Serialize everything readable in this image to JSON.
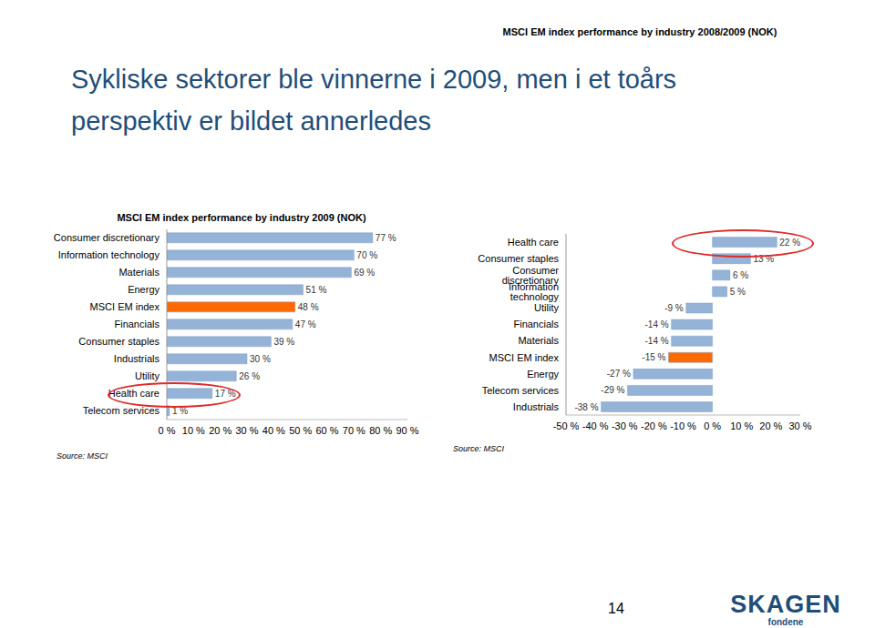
{
  "title": [
    "Sykliske sektorer ble vinnerne i 2009, men i et toårs",
    "perspektiv er bildet annerledes"
  ],
  "chart_data": [
    {
      "type": "bar",
      "orientation": "horizontal",
      "title": "MSCI EM index performance by industry 2009 (NOK)",
      "categories": [
        "Consumer discretionary",
        "Information technology",
        "Materials",
        "Energy",
        "MSCI EM index",
        "Financials",
        "Consumer staples",
        "Industrials",
        "Utility",
        "Health care",
        "Telecom services"
      ],
      "values": [
        77,
        70,
        69,
        51,
        48,
        47,
        39,
        30,
        26,
        17,
        1
      ],
      "value_labels": [
        "77 %",
        "70 %",
        "69 %",
        "51 %",
        "48 %",
        "47 %",
        "39 %",
        "30 %",
        "26 %",
        "17 %",
        "1 %"
      ],
      "data_labels": true,
      "colors": [
        "#95B3D7",
        "#95B3D7",
        "#95B3D7",
        "#95B3D7",
        "#FF6A00",
        "#95B3D7",
        "#95B3D7",
        "#95B3D7",
        "#95B3D7",
        "#95B3D7",
        "#95B3D7"
      ],
      "xlim": [
        0,
        90
      ],
      "xticks": [
        {
          "value": 0,
          "label": "0 %"
        },
        {
          "value": 10,
          "label": "10 %"
        },
        {
          "value": 20,
          "label": "20 %"
        },
        {
          "value": 30,
          "label": "30 %"
        },
        {
          "value": 40,
          "label": "40 %"
        },
        {
          "value": 50,
          "label": "50 %"
        },
        {
          "value": 60,
          "label": "60 %"
        },
        {
          "value": 70,
          "label": "70 %"
        },
        {
          "value": 80,
          "label": "80 %"
        },
        {
          "value": 90,
          "label": "90 %"
        }
      ],
      "grid": false,
      "source": "Source: MSCI"
    },
    {
      "type": "bar",
      "orientation": "horizontal",
      "title": "MSCI EM index performance by industry 2008/2009 (NOK)",
      "categories": [
        "Health care",
        "Consumer staples",
        "Consumer discretionary",
        "Information technology",
        "Utility",
        "Financials",
        "Materials",
        "MSCI EM index",
        "Energy",
        "Telecom services",
        "Industrials"
      ],
      "values": [
        22,
        13,
        6,
        5,
        -9,
        -14,
        -14,
        -15,
        -27,
        -29,
        -38
      ],
      "value_labels": [
        "22 %",
        "13 %",
        "6 %",
        "5 %",
        "-9 %",
        "-14 %",
        "-14 %",
        "-15 %",
        "-27 %",
        "-29 %",
        "-38 %"
      ],
      "data_labels": true,
      "colors": [
        "#95B3D7",
        "#95B3D7",
        "#95B3D7",
        "#95B3D7",
        "#95B3D7",
        "#95B3D7",
        "#95B3D7",
        "#FF6A00",
        "#95B3D7",
        "#95B3D7",
        "#95B3D7"
      ],
      "xlim": [
        -50,
        30
      ],
      "xticks": [
        {
          "value": -50,
          "label": "-50 %"
        },
        {
          "value": -40,
          "label": "-40 %"
        },
        {
          "value": -30,
          "label": "-30 %"
        },
        {
          "value": -20,
          "label": "-20 %"
        },
        {
          "value": -10,
          "label": "-10 %"
        },
        {
          "value": 0,
          "label": "0 %"
        },
        {
          "value": 10,
          "label": "10 %"
        },
        {
          "value": 20,
          "label": "20 %"
        },
        {
          "value": 30,
          "label": "30 %"
        }
      ],
      "grid": false,
      "source": "Source: MSCI"
    }
  ],
  "page": 14,
  "logo": [
    "SKAGEN",
    "fondene"
  ]
}
